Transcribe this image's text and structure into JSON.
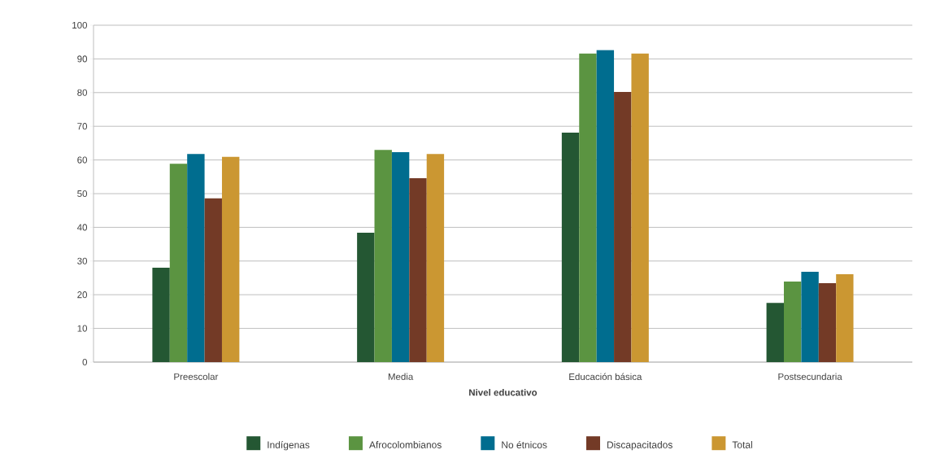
{
  "chart_data": {
    "type": "bar",
    "xlabel": "Nivel educativo",
    "categories": [
      "Preescolar",
      "Media",
      "Educación básica",
      "Postsecundaria"
    ],
    "series": [
      {
        "name": "Indígenas",
        "color": "#245733",
        "values": [
          28.0,
          38.4,
          68.1,
          17.6
        ]
      },
      {
        "name": "Afrocolombianos",
        "color": "#5b9441",
        "values": [
          58.9,
          63.0,
          91.6,
          23.9
        ]
      },
      {
        "name": "No étnicos",
        "color": "#006d8f",
        "values": [
          61.8,
          62.3,
          92.6,
          26.8
        ]
      },
      {
        "name": "Discapacitados",
        "color": "#733a26",
        "values": [
          48.6,
          54.6,
          80.2,
          23.4
        ]
      },
      {
        "name": "Total",
        "color": "#cb9732",
        "values": [
          60.9,
          61.8,
          91.6,
          26.1
        ]
      }
    ],
    "ylim": [
      0,
      100
    ],
    "yticks": [
      0,
      10,
      20,
      30,
      40,
      50,
      60,
      70,
      80,
      90,
      100
    ],
    "grid": "y",
    "legend": "bottom"
  }
}
